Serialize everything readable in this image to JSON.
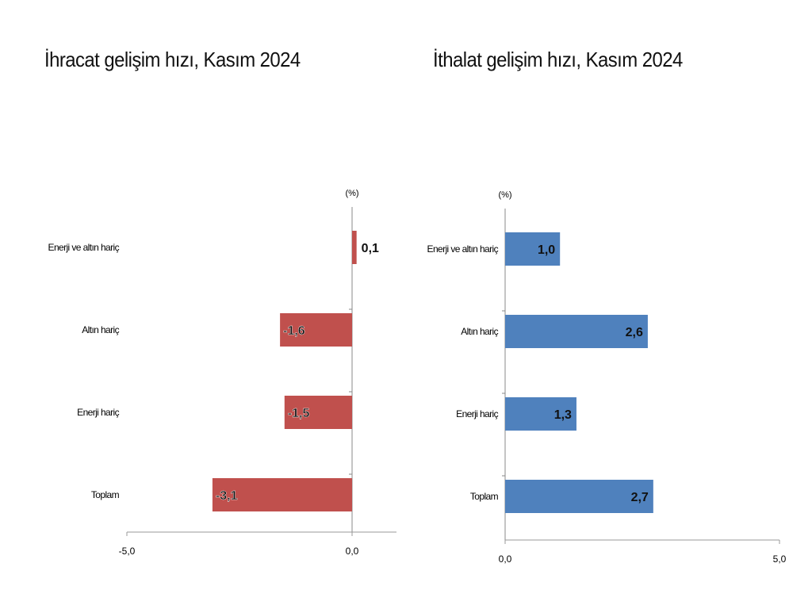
{
  "chart_data": [
    {
      "type": "bar",
      "orientation": "horizontal",
      "title": "İhracat gelişim hızı, Kasım 2024",
      "unit": "(%)",
      "categories": [
        "Enerji ve altın hariç",
        "Altın hariç",
        "Enerji hariç",
        "Toplam"
      ],
      "values": [
        0.1,
        -1.6,
        -1.5,
        -3.1
      ],
      "value_labels": [
        "0,1",
        "-1,6",
        "-1,5",
        "-3,1"
      ],
      "xlim": [
        -5.0,
        1.0
      ],
      "xticks": [
        -5.0,
        0.0
      ],
      "xtick_labels": [
        "-5,0",
        "0,0"
      ],
      "bar_color": "#C0504D",
      "grid": false,
      "legend": "none"
    },
    {
      "type": "bar",
      "orientation": "horizontal",
      "title": "İthalat gelişim hızı, Kasım 2024",
      "unit": "(%)",
      "categories": [
        "Enerji ve altın hariç",
        "Altın hariç",
        "Enerji hariç",
        "Toplam"
      ],
      "values": [
        1.0,
        2.6,
        1.3,
        2.7
      ],
      "value_labels": [
        "1,0",
        "2,6",
        "1,3",
        "2,7"
      ],
      "xlim": [
        0.0,
        5.0
      ],
      "xticks": [
        0.0,
        5.0
      ],
      "xtick_labels": [
        "0,0",
        "5,0"
      ],
      "bar_color": "#4F81BD",
      "grid": false,
      "legend": "none"
    }
  ]
}
